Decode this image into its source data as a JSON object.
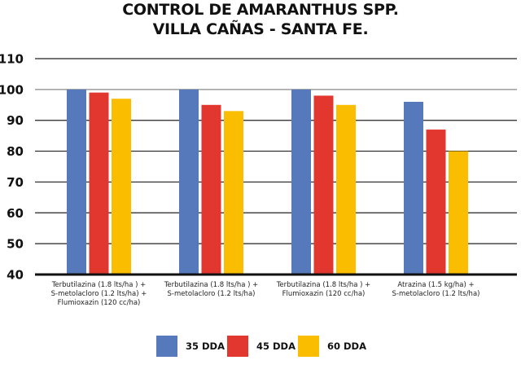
{
  "chart_data": {
    "type": "bar",
    "title": "CONTROL DE AMARANTHUS SPP.",
    "subtitle": "VILLA CAÑAS -  SANTA FE.",
    "xlabel": "",
    "ylabel": "",
    "ylim": [
      40,
      110
    ],
    "yticks": [
      40,
      50,
      60,
      70,
      80,
      90,
      100,
      110
    ],
    "grid": true,
    "legend_position": "bottom",
    "categories": [
      [
        "Terbutilazina (1.8 lts/ha ) +",
        "S-metolacloro (1.2 lts/ha) +",
        "Flumioxazin (120 cc/ha)"
      ],
      [
        "Terbutilazina (1.8 lts/ha ) +",
        "S-metolacloro (1.2 lts/ha)"
      ],
      [
        "Terbutilazina (1.8 lts/ha ) +",
        "Flumioxazin (120 cc/ha)"
      ],
      [
        "Atrazina (1.5 kg/ha) +",
        "S-metolacloro (1.2 lts/ha)"
      ]
    ],
    "series": [
      {
        "name": "35 DDA",
        "color": "#5579bb",
        "values": [
          100,
          100,
          100,
          96
        ]
      },
      {
        "name": "45 DDA",
        "color": "#e2372e",
        "values": [
          99,
          95,
          98,
          87
        ]
      },
      {
        "name": "60 DDA",
        "color": "#fbbd00",
        "values": [
          97,
          93,
          95,
          80
        ]
      }
    ]
  }
}
